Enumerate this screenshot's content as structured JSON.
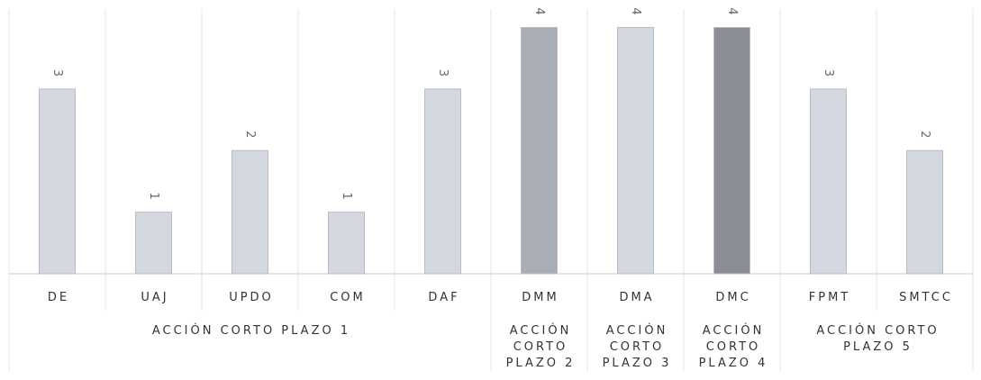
{
  "chart_data": {
    "type": "bar",
    "categories": [
      "DE",
      "UAJ",
      "UPDO",
      "COM",
      "DAF",
      "DMM",
      "DMA",
      "DMC",
      "FPMT",
      "SMTCC"
    ],
    "values": [
      3,
      1,
      2,
      1,
      3,
      4,
      4,
      4,
      3,
      2
    ],
    "groups": [
      {
        "label": [
          "ACCIÓN CORTO PLAZO 1"
        ],
        "categories": [
          "DE",
          "UAJ",
          "UPDO",
          "COM",
          "DAF"
        ]
      },
      {
        "label": [
          "ACCIÓN",
          "CORTO",
          "PLAZO 2"
        ],
        "categories": [
          "DMM"
        ]
      },
      {
        "label": [
          "ACCIÓN",
          "CORTO",
          "PLAZO 3"
        ],
        "categories": [
          "DMA"
        ]
      },
      {
        "label": [
          "ACCIÓN",
          "CORTO",
          "PLAZO 4"
        ],
        "categories": [
          "DMC"
        ]
      },
      {
        "label": [
          "ACCIÓN CORTO",
          "PLAZO 5"
        ],
        "categories": [
          "FPMT",
          "SMTCC"
        ]
      }
    ],
    "ylim": [
      0,
      4.3
    ],
    "grid": false,
    "legend": "none",
    "data_labels": true,
    "colors": {
      "bar_light": "#d3d7df",
      "bar_medium": "#a9adb6",
      "bar_dark": "#8b8e95",
      "bar_border": "#b9bcc3",
      "separator": "#e4e4e4",
      "axis": "#c8c8c8",
      "text": "#333333",
      "data_label": "#666666"
    },
    "bar_shades": [
      "light",
      "light",
      "light",
      "light",
      "light",
      "medium",
      "light",
      "dark",
      "light",
      "light"
    ]
  }
}
